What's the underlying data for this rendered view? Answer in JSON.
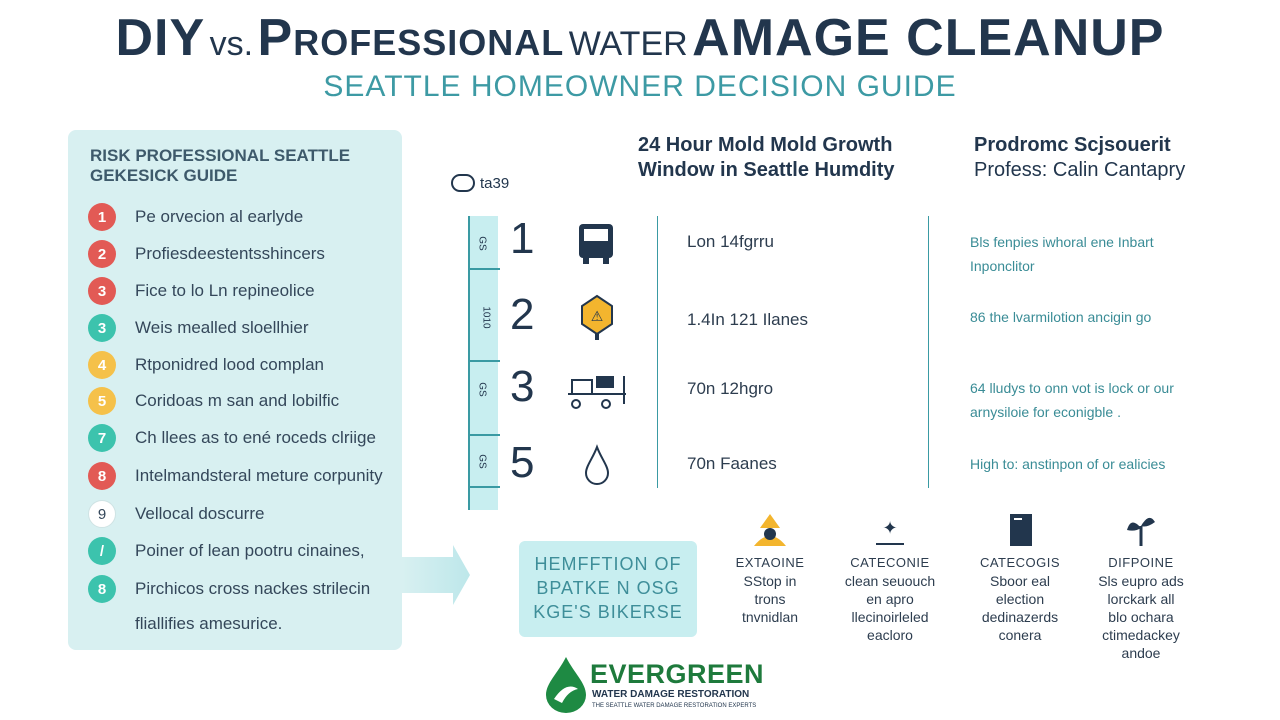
{
  "header": {
    "title_part1": "DIY",
    "title_vs": "vs.",
    "title_part2": "Professional",
    "title_water": "WATER",
    "title_part3": "AMAGE CLEANUP",
    "subtitle": "SEATTLE HOMEOWNER DECISION GUIDE"
  },
  "left_panel": {
    "heading_line1": "RISK PROFESSIONAL SEATTLE",
    "heading_line2": "GEKESICK GUIDE",
    "items": [
      {
        "num": "1",
        "text": "Pe orvecion al earlyde",
        "color": "#e25a55"
      },
      {
        "num": "2",
        "text": "Profiesdeestentsshincers",
        "color": "#e25a55"
      },
      {
        "num": "3",
        "text": "Fice to lo Ln repineolice",
        "color": "#e25a55"
      },
      {
        "num": "3",
        "text": "Weis mealled sloellhier",
        "color": "#3cc3ad"
      },
      {
        "num": "4",
        "text": "Rtponidred lood complan",
        "color": "#f5c14a"
      },
      {
        "num": "5",
        "text": "Coridoas m san and lobilfic",
        "color": "#f5c14a"
      },
      {
        "num": "7",
        "text": "Ch llees as to ené roceds clriige",
        "color": "#3cc3ad"
      },
      {
        "num": "8",
        "text": "Intelmandsteral meture corpunity",
        "color": "#e25a55"
      },
      {
        "num": "9",
        "text": "Vellocal doscurre",
        "color": "#ffffff"
      },
      {
        "num": "/",
        "text": "Poiner of lean pootru cinaines,",
        "color": "#3cc3ad"
      },
      {
        "num": "8",
        "text": "Pirchicos cross nackes strilecin",
        "color": "#3cc3ad"
      },
      {
        "num": "",
        "text": "fliallifies amesurice.",
        "color": ""
      }
    ]
  },
  "center_box": {
    "line1": "HEMFFTION OF",
    "line2": "BPATKE N OSG",
    "line3": "KGE'S BIKERSE"
  },
  "timeline": {
    "top_label": "ta39",
    "col_mid_head_line1": "24 Hour Mold Mold Growth",
    "col_mid_head_line2": "Window in Seattle Humdity",
    "col_right_head_line1": "Prodromc Scjsouerit",
    "col_right_head_line2": "Profess: Calin Cantapry",
    "scale_labels": [
      "GS",
      "1010",
      "GS",
      "GS"
    ],
    "rows": [
      {
        "num": "1",
        "icon": "bus-icon",
        "mid": "Lon 14fgrru",
        "right1": "Bls fenpies iwhoral ene Inbart",
        "right2": "Inponclitor"
      },
      {
        "num": "2",
        "icon": "warning-sign-icon",
        "mid": "1.4In 121 Ilanes",
        "right1": "86 the lvarmilotion ancigin go",
        "right2": ""
      },
      {
        "num": "3",
        "icon": "equipment-cart-icon",
        "mid": "70n 12hgro",
        "right1": "64 lludys to onn vot is lock or our",
        "right2": "arnysiloie for econigble ."
      },
      {
        "num": "5",
        "icon": "water-drop-icon",
        "mid": "70n Faanes",
        "right1": "High to: anstinpon of or ealicies",
        "right2": ""
      }
    ]
  },
  "categories": [
    {
      "name": "EXTAOINE",
      "l1": "SStop in",
      "l2": "trons",
      "l3": "tnvnidlan",
      "l4": "",
      "icon": "hazard-person-icon"
    },
    {
      "name": "CATECONIE",
      "l1": "clean seuouch",
      "l2": "en apro",
      "l3": "llecinoirleled",
      "l4": "eacloro",
      "icon": "sparkle-icon"
    },
    {
      "name": "CATECOGIS",
      "l1": "Sboor eal",
      "l2": "election",
      "l3": "dedinazerds",
      "l4": "conera",
      "icon": "document-icon"
    },
    {
      "name": "DIFPOINE",
      "l1": "Sls eupro ads",
      "l2": "lorckark all",
      "l3": "blo ochara",
      "l4": "ctimedackey",
      "l5": "andoe",
      "icon": "plant-icon"
    }
  ],
  "logo": {
    "name": "EVERGREEN",
    "tag1": "WATER DAMAGE RESTORATION",
    "tag2": "THE SEATTLE WATER DAMAGE RESTORATION EXPERTS"
  }
}
